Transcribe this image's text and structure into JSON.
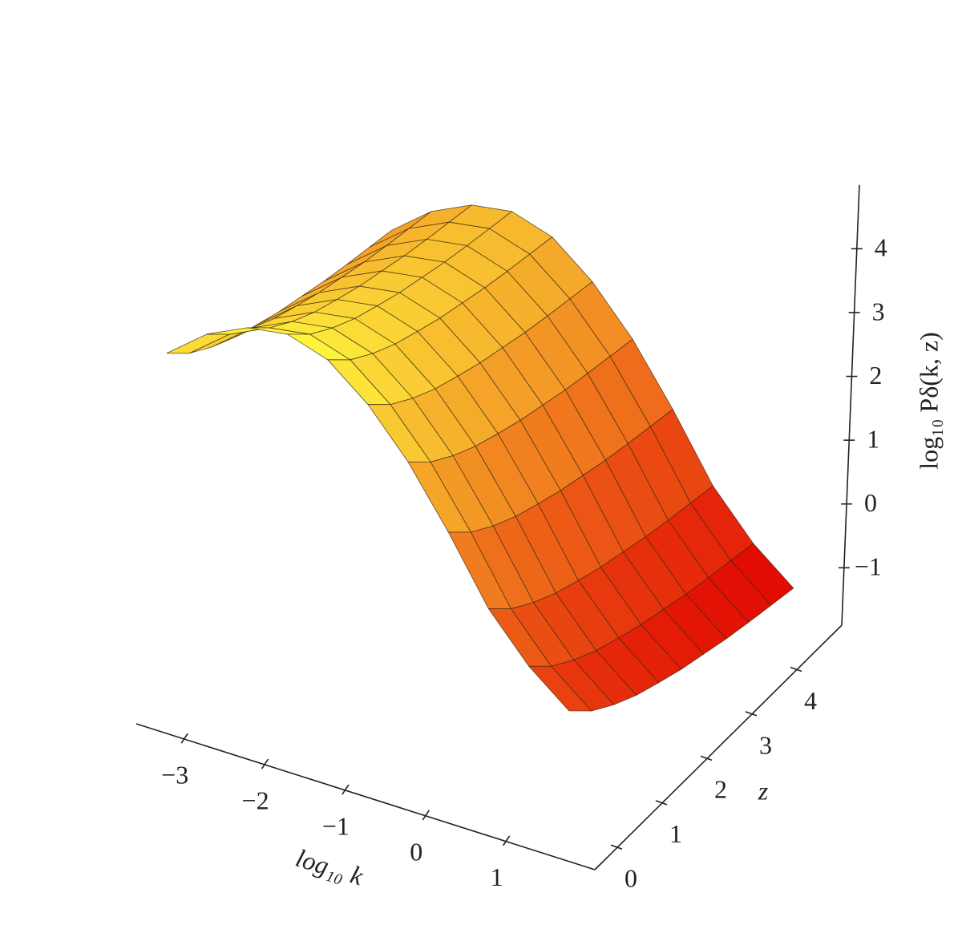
{
  "chart_data": {
    "type": "surface",
    "x_label": "log₁₀ k",
    "z_label": "z",
    "y_label": "log₁₀ Pδ(k, z)",
    "x": [
      -3.5,
      -3,
      -2.5,
      -2,
      -1.5,
      -1,
      -0.5,
      0,
      0.5,
      1,
      1.5
    ],
    "z": [
      0,
      0.5,
      1,
      1.5,
      2,
      2.5,
      3,
      3.5,
      4,
      4.5,
      5
    ],
    "values": [
      [
        3.6,
        4.1,
        4.4,
        4.5,
        4.3,
        3.8,
        3.1,
        2.2,
        1.2,
        0.5,
        0.0
      ],
      [
        3.25,
        3.75,
        4.05,
        4.15,
        3.95,
        3.45,
        2.75,
        1.85,
        0.85,
        0.15,
        -0.35
      ],
      [
        3.0,
        3.5,
        3.8,
        3.9,
        3.7,
        3.2,
        2.5,
        1.6,
        0.6,
        -0.1,
        -0.6
      ],
      [
        2.8,
        3.3,
        3.6,
        3.7,
        3.5,
        3.0,
        2.3,
        1.4,
        0.4,
        -0.3,
        -0.8
      ],
      [
        2.65,
        3.15,
        3.45,
        3.55,
        3.35,
        2.85,
        2.15,
        1.25,
        0.25,
        -0.45,
        -0.95
      ],
      [
        2.51,
        3.01,
        3.31,
        3.41,
        3.21,
        2.71,
        2.01,
        1.11,
        0.11,
        -0.59,
        -1.09
      ],
      [
        2.4,
        2.9,
        3.2,
        3.3,
        3.1,
        2.6,
        1.9,
        1.0,
        0.0,
        -0.7,
        -1.2
      ],
      [
        2.29,
        2.79,
        3.09,
        3.19,
        2.99,
        2.49,
        1.79,
        0.89,
        -0.11,
        -0.81,
        -1.31
      ],
      [
        2.2,
        2.7,
        3.0,
        3.1,
        2.9,
        2.4,
        1.7,
        0.8,
        -0.2,
        -0.9,
        -1.4
      ],
      [
        2.12,
        2.62,
        2.92,
        3.02,
        2.82,
        2.32,
        1.62,
        0.72,
        -0.28,
        -0.98,
        -1.48
      ],
      [
        2.04,
        2.54,
        2.84,
        2.94,
        2.74,
        2.24,
        1.54,
        0.64,
        -0.36,
        -1.06,
        -1.56
      ]
    ],
    "colormap": [
      "#e00000",
      "#f07a1e",
      "#ffff40"
    ],
    "xlim": [
      -3.6,
      2.1
    ],
    "zlim": [
      -0.5,
      5
    ],
    "ylim": [
      -1.9,
      5.0
    ],
    "xticks": [
      {
        "value": -3,
        "label": "−3"
      },
      {
        "value": -2,
        "label": "−2"
      },
      {
        "value": -1,
        "label": "−1"
      },
      0,
      1
    ],
    "zticks": [
      0,
      1,
      2,
      3,
      4
    ],
    "yticks": [
      {
        "value": -1,
        "label": "−1"
      },
      0,
      1,
      2,
      3,
      4
    ]
  }
}
